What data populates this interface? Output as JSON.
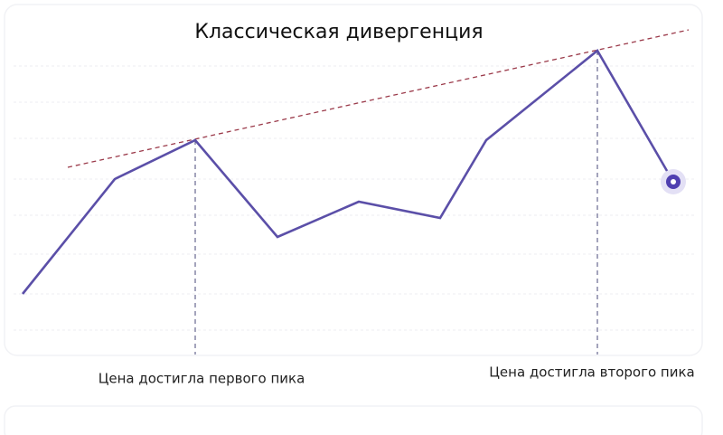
{
  "title": "Классическая дивергенция",
  "annotations": [
    "Цена достигла первого пика",
    "Цена достигла второго пика"
  ]
}
